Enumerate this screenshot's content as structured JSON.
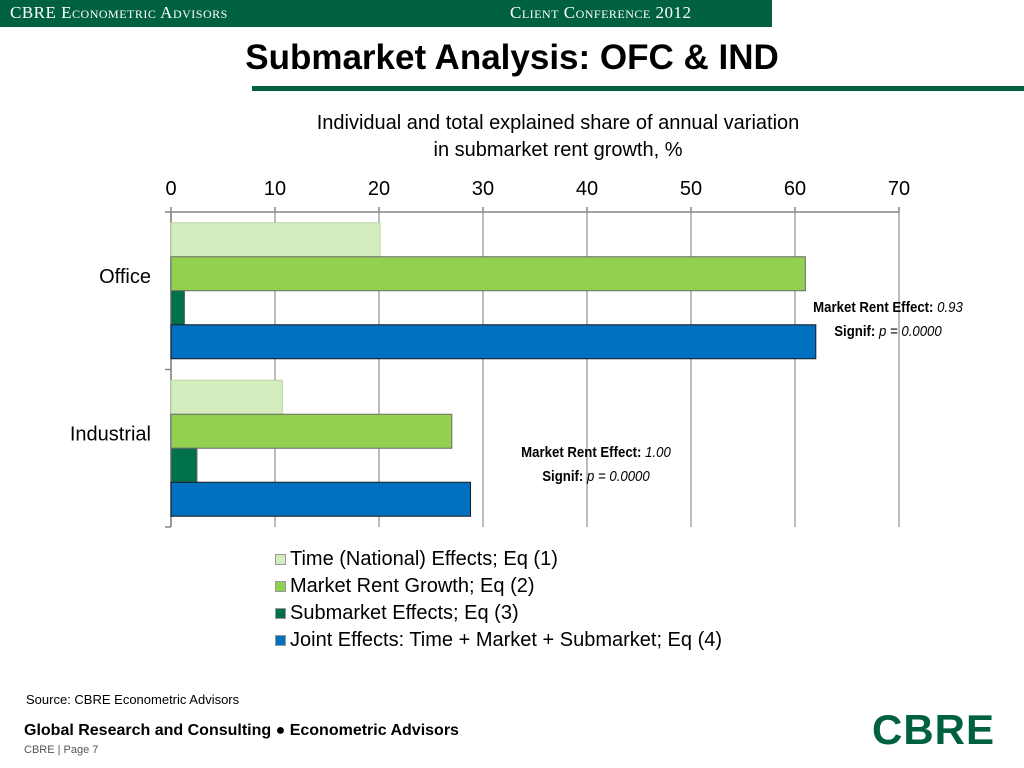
{
  "header": {
    "left": "CBRE Econometric Advisors",
    "right": "Client Conference 2012"
  },
  "page_title": "Submarket Analysis: OFC & IND",
  "chart_data": {
    "type": "bar",
    "orientation": "horizontal",
    "title": "Individual and total explained share of annual variation in submarket rent growth, %",
    "title_line1": "Individual and total explained share of annual variation",
    "title_line2": "in submarket rent growth, %",
    "categories": [
      "Office",
      "Industrial"
    ],
    "series": [
      {
        "name": "Time (National) Effects; Eq (1)",
        "color": "#d4edbf",
        "values": [
          20.1,
          10.7
        ]
      },
      {
        "name": "Market Rent Growth; Eq (2)",
        "color": "#92d050",
        "values": [
          61.0,
          27.0
        ]
      },
      {
        "name": "Submarket Effects; Eq (3)",
        "color": "#00704a",
        "values": [
          1.3,
          2.5
        ]
      },
      {
        "name": "Joint Effects: Time + Market + Submarket; Eq (4)",
        "color": "#0070c0",
        "values": [
          62.0,
          28.8
        ]
      }
    ],
    "xlim": [
      0,
      70
    ],
    "xticks": [
      "0",
      "10",
      "20",
      "30",
      "40",
      "50",
      "60",
      "70"
    ],
    "x_axis_position": "top",
    "grid": true,
    "legend_position": "bottom",
    "annotations": [
      {
        "label1": "Market Rent Effect:",
        "value1": "0.93",
        "label2": "Signif:",
        "value2": "p = 0.0000"
      },
      {
        "label1": "Market Rent Effect:",
        "value1": "1.00",
        "label2": "Signif:",
        "value2": "p = 0.0000"
      }
    ]
  },
  "source": "Source: CBRE Econometric Advisors",
  "footer": {
    "main": "Global Research and Consulting ● Econometric Advisors",
    "page": "CBRE  |  Page 7"
  },
  "logo": "CBRE"
}
